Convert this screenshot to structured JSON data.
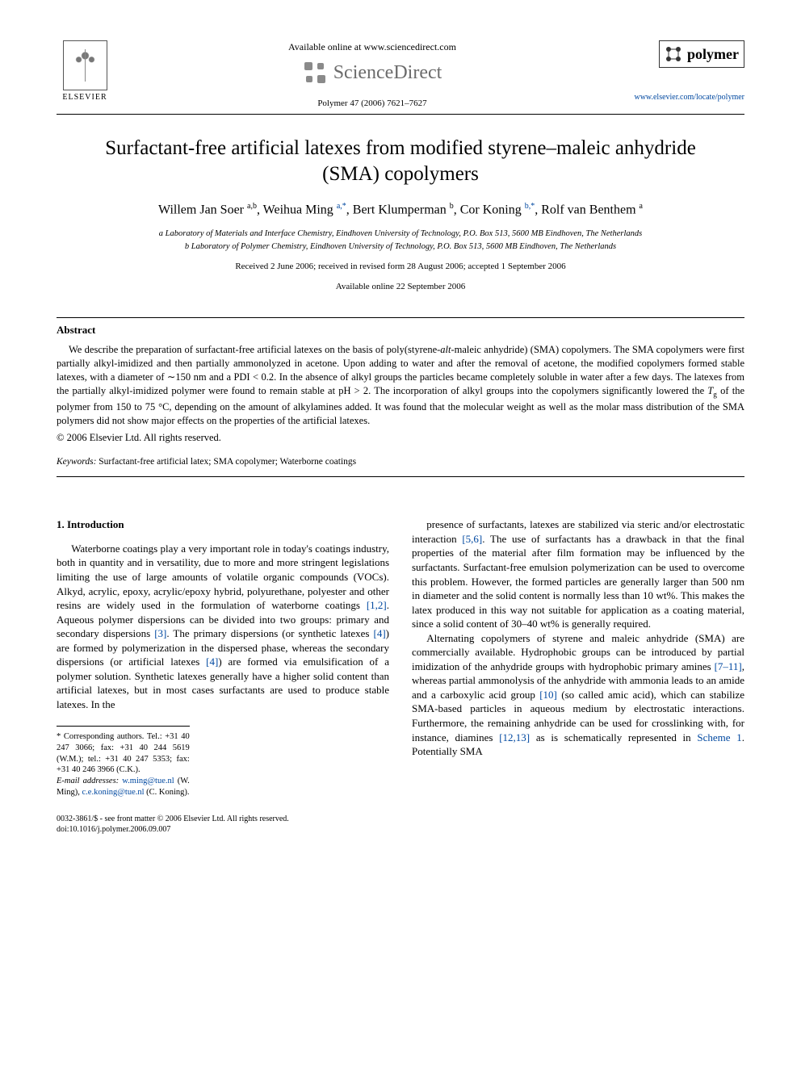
{
  "header": {
    "available_online": "Available online at www.sciencedirect.com",
    "sd_brand": "ScienceDirect",
    "journal_citation": "Polymer 47 (2006) 7621–7627",
    "elsevier_label": "ELSEVIER",
    "polymer_label": "polymer",
    "journal_url": "www.elsevier.com/locate/polymer"
  },
  "title": "Surfactant-free artificial latexes from modified styrene–maleic anhydride (SMA) copolymers",
  "authors_html": "Willem Jan Soer <sup>a,b</sup>, Weihua Ming <sup class=\"link\">a,*</sup>, Bert Klumperman <sup>b</sup>, Cor Koning <sup class=\"link\">b,*</sup>, Rolf van Benthem <sup>a</sup>",
  "affiliations": {
    "a": "a Laboratory of Materials and Interface Chemistry, Eindhoven University of Technology, P.O. Box 513, 5600 MB Eindhoven, The Netherlands",
    "b": "b Laboratory of Polymer Chemistry, Eindhoven University of Technology, P.O. Box 513, 5600 MB Eindhoven, The Netherlands"
  },
  "dates": {
    "line1": "Received 2 June 2006; received in revised form 28 August 2006; accepted 1 September 2006",
    "line2": "Available online 22 September 2006"
  },
  "abstract": {
    "heading": "Abstract",
    "text_html": "We describe the preparation of surfactant-free artificial latexes on the basis of poly(styrene-<span class=\"ital\">alt</span>-maleic anhydride) (SMA) copolymers. The SMA copolymers were first partially alkyl-imidized and then partially ammonolyzed in acetone. Upon adding to water and after the removal of acetone, the modified copolymers formed stable latexes, with a diameter of ∼150 nm and a PDI &lt; 0.2. In the absence of alkyl groups the particles became completely soluble in water after a few days. The latexes from the partially alkyl-imidized polymer were found to remain stable at pH &gt; 2. The incorporation of alkyl groups into the copolymers significantly lowered the <span class=\"ital\">T</span><span class=\"sub\">g</span> of the polymer from 150 to 75 °C, depending on the amount of alkylamines added. It was found that the molecular weight as well as the molar mass distribution of the SMA polymers did not show major effects on the properties of the artificial latexes.",
    "copyright": "© 2006 Elsevier Ltd. All rights reserved."
  },
  "keywords": {
    "label": "Keywords:",
    "value": "Surfactant-free artificial latex; SMA copolymer; Waterborne coatings"
  },
  "section1": {
    "heading": "1. Introduction",
    "left_html": "Waterborne coatings play a very important role in today's coatings industry, both in quantity and in versatility, due to more and more stringent legislations limiting the use of large amounts of volatile organic compounds (VOCs). Alkyd, acrylic, epoxy, acrylic/epoxy hybrid, polyurethane, polyester and other resins are widely used in the formulation of waterborne coatings <span class=\"ref\">[1,2]</span>. Aqueous polymer dispersions can be divided into two groups: primary and secondary dispersions <span class=\"ref\">[3]</span>. The primary dispersions (or synthetic latexes <span class=\"ref\">[4]</span>) are formed by polymerization in the dispersed phase, whereas the secondary dispersions (or artificial latexes <span class=\"ref\">[4]</span>) are formed via emulsification of a polymer solution. Synthetic latexes generally have a higher solid content than artificial latexes, but in most cases surfactants are used to produce stable latexes. In the",
    "right_p1_html": "presence of surfactants, latexes are stabilized via steric and/or electrostatic interaction <span class=\"ref\">[5,6]</span>. The use of surfactants has a drawback in that the final properties of the material after film formation may be influenced by the surfactants. Surfactant-free emulsion polymerization can be used to overcome this problem. However, the formed particles are generally larger than 500 nm in diameter and the solid content is normally less than 10 wt%. This makes the latex produced in this way not suitable for application as a coating material, since a solid content of 30–40 wt% is generally required.",
    "right_p2_html": "Alternating copolymers of styrene and maleic anhydride (SMA) are commercially available. Hydrophobic groups can be introduced by partial imidization of the anhydride groups with hydrophobic primary amines <span class=\"ref\">[7–11]</span>, whereas partial ammonolysis of the anhydride with ammonia leads to an amide and a carboxylic acid group <span class=\"ref\">[10]</span> (so called amic acid), which can stabilize SMA-based particles in aqueous medium by electrostatic interactions. Furthermore, the remaining anhydride can be used for crosslinking with, for instance, diamines <span class=\"ref\">[12,13]</span> as is schematically represented in <span class=\"ref\">Scheme 1</span>. Potentially SMA"
  },
  "footnotes": {
    "corr": "* Corresponding authors. Tel.: +31 40 247 3066; fax: +31 40 244 5619 (W.M.); tel.: +31 40 247 5353; fax: +31 40 246 3966 (C.K.).",
    "email_label": "E-mail addresses:",
    "email1": "w.ming@tue.nl",
    "email1_who": "(W. Ming),",
    "email2": "c.e.koning@tue.nl",
    "email2_who": "(C. Koning)."
  },
  "footer": {
    "line1": "0032-3861/$ - see front matter © 2006 Elsevier Ltd. All rights reserved.",
    "line2": "doi:10.1016/j.polymer.2006.09.007"
  },
  "colors": {
    "link": "#0048a0",
    "text": "#000000",
    "sd_gray": "#6b6b6b"
  }
}
